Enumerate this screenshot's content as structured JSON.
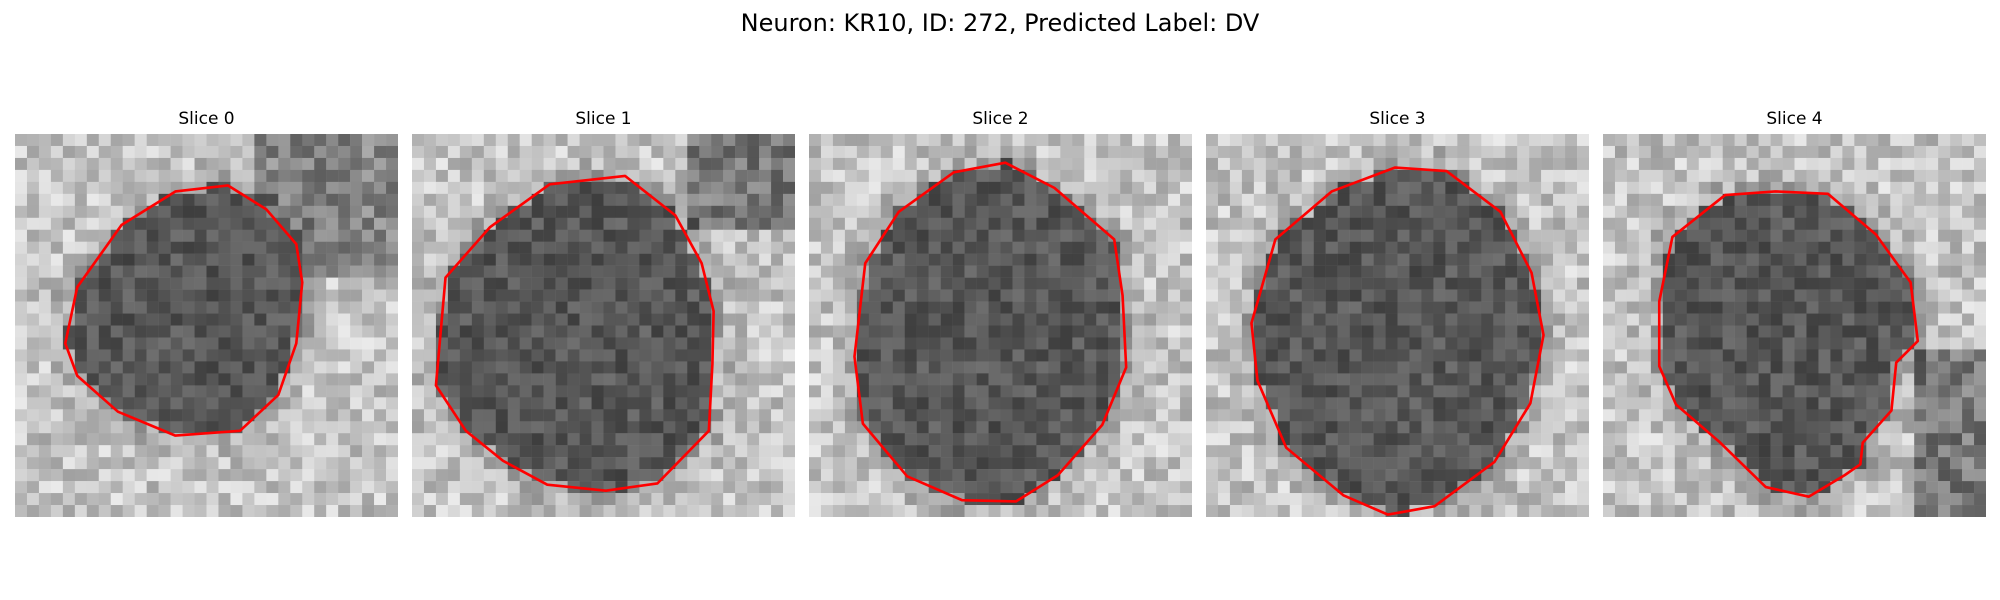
{
  "figure": {
    "title": "Neuron: KR10, ID: 272, Predicted Label: DV"
  },
  "contour_color": "#ff0000",
  "panels": [
    {
      "title": "Slice 0",
      "contour": [
        [
          4.2,
          17.5
        ],
        [
          5.2,
          12.8
        ],
        [
          8.9,
          7.6
        ],
        [
          13.4,
          4.8
        ],
        [
          17.8,
          4.3
        ],
        [
          21,
          6.3
        ],
        [
          23.5,
          9.2
        ],
        [
          24,
          12.4
        ],
        [
          23.5,
          17.5
        ],
        [
          22,
          21.8
        ],
        [
          18.8,
          24.8
        ],
        [
          13.4,
          25.2
        ],
        [
          8.6,
          23.2
        ],
        [
          5.2,
          20.2
        ]
      ]
    },
    {
      "title": "Slice 1",
      "contour": [
        [
          2,
          21
        ],
        [
          2.8,
          12
        ],
        [
          6.5,
          7.8
        ],
        [
          11.5,
          4.2
        ],
        [
          17.8,
          3.5
        ],
        [
          22,
          6.8
        ],
        [
          24.2,
          10.8
        ],
        [
          25.2,
          14.8
        ],
        [
          25.1,
          19.2
        ],
        [
          24.8,
          24.8
        ],
        [
          20.5,
          29.2
        ],
        [
          16.2,
          29.8
        ],
        [
          11.3,
          29.3
        ],
        [
          7.6,
          27.3
        ],
        [
          4.5,
          24.8
        ]
      ]
    },
    {
      "title": "Slice 2",
      "contour": [
        [
          3.8,
          18.6
        ],
        [
          4.7,
          10.8
        ],
        [
          7.5,
          6.5
        ],
        [
          12.1,
          3.2
        ],
        [
          16.4,
          2.4
        ],
        [
          20.5,
          4.5
        ],
        [
          25.5,
          8.8
        ],
        [
          26.2,
          13.5
        ],
        [
          26.5,
          19.5
        ],
        [
          24.5,
          24.3
        ],
        [
          20.8,
          28.5
        ],
        [
          17.3,
          30.7
        ],
        [
          12.8,
          30.6
        ],
        [
          8.2,
          28.6
        ],
        [
          4.5,
          24.2
        ]
      ]
    },
    {
      "title": "Slice 3",
      "contour": [
        [
          3.8,
          15.8
        ],
        [
          5.8,
          8.8
        ],
        [
          10.5,
          4.8
        ],
        [
          15.8,
          2.8
        ],
        [
          20.1,
          3.1
        ],
        [
          24.6,
          6.5
        ],
        [
          27.2,
          11.6
        ],
        [
          28.2,
          16.8
        ],
        [
          27.1,
          22.5
        ],
        [
          24.1,
          27.4
        ],
        [
          19.1,
          31.1
        ],
        [
          15.2,
          31.8
        ],
        [
          11.5,
          30.2
        ],
        [
          6.7,
          26.2
        ],
        [
          4.3,
          20.6
        ]
      ]
    },
    {
      "title": "Slice 4",
      "contour": [
        [
          4.7,
          14
        ],
        [
          5.8,
          8.6
        ],
        [
          10.2,
          5.1
        ],
        [
          14.4,
          4.8
        ],
        [
          18.8,
          5
        ],
        [
          22.8,
          8.4
        ],
        [
          25.7,
          12.4
        ],
        [
          26.3,
          17.3
        ],
        [
          24.5,
          19.1
        ],
        [
          24.1,
          23.1
        ],
        [
          21.7,
          25.8
        ],
        [
          21.5,
          27.6
        ],
        [
          20.2,
          28.5
        ],
        [
          17.2,
          30.3
        ],
        [
          13.6,
          29.5
        ],
        [
          9.7,
          25.7
        ],
        [
          6.1,
          22.6
        ],
        [
          4.7,
          19.4
        ]
      ]
    }
  ]
}
